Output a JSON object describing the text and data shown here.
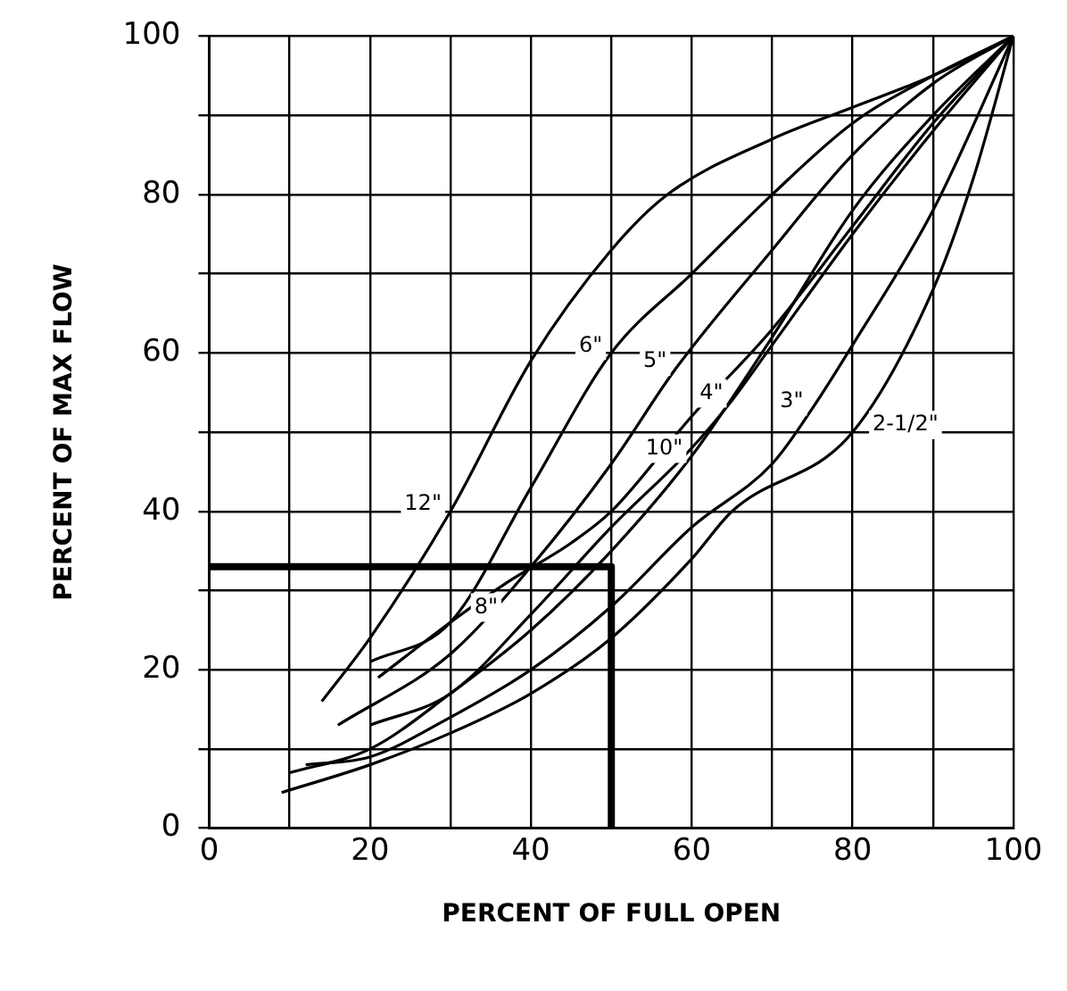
{
  "chart_data": {
    "type": "line",
    "xlabel": "PERCENT OF FULL OPEN",
    "ylabel": "PERCENT OF MAX FLOW",
    "xlim": [
      0,
      100
    ],
    "ylim": [
      0,
      100
    ],
    "xticks": [
      0,
      {
        "value": 10,
        "label": null
      },
      20,
      {
        "value": 30,
        "label": null
      },
      40,
      {
        "value": 50,
        "label": null
      },
      60,
      {
        "value": 70,
        "label": null
      },
      80,
      {
        "value": 90,
        "label": null
      },
      100
    ],
    "yticks": [
      0,
      {
        "value": 10,
        "label": null
      },
      20,
      {
        "value": 30,
        "label": null
      },
      40,
      {
        "value": 50,
        "label": null
      },
      60,
      {
        "value": 70,
        "label": null
      },
      80,
      {
        "value": 90,
        "label": null
      },
      100
    ],
    "grid": true,
    "legend": false,
    "marker": "none",
    "line_style": "solid",
    "series": [
      {
        "name": "12\"",
        "color": "#000000",
        "x": [
          14,
          20,
          30,
          40,
          50,
          57,
          70,
          80,
          90,
          100
        ],
        "values": [
          16,
          24,
          40,
          59,
          73,
          80,
          87,
          91,
          95,
          100
        ]
      },
      {
        "name": "6\"",
        "color": "#000000",
        "x": [
          20,
          30,
          40,
          50,
          60,
          70,
          80,
          90,
          100
        ],
        "values": [
          21,
          26,
          43,
          60,
          70,
          80,
          89,
          95,
          100
        ]
      },
      {
        "name": "5\"",
        "color": "#000000",
        "x": [
          16,
          30,
          40,
          50,
          58,
          70,
          80,
          90,
          100
        ],
        "values": [
          13,
          22,
          33,
          46,
          58,
          73,
          85,
          94,
          100
        ]
      },
      {
        "name": "4\"",
        "color": "#000000",
        "x": [
          20,
          30,
          40,
          50,
          60,
          65,
          70,
          80,
          90,
          100
        ],
        "values": [
          13,
          17,
          27,
          38,
          48,
          54,
          61,
          75,
          88,
          100
        ]
      },
      {
        "name": "10\"",
        "color": "#000000",
        "x": [
          10,
          20,
          30,
          40,
          50,
          60,
          70,
          80,
          90,
          100
        ],
        "values": [
          7,
          10,
          17,
          25,
          35,
          47,
          62,
          78,
          90,
          100
        ]
      },
      {
        "name": "3\"",
        "color": "#000000",
        "x": [
          12,
          20,
          30,
          40,
          50,
          60,
          70,
          75,
          80,
          90,
          100
        ],
        "values": [
          8,
          9,
          14,
          20,
          28,
          38,
          46,
          53,
          61,
          78,
          100
        ]
      },
      {
        "name": "8\"",
        "color": "#000000",
        "x": [
          21,
          30,
          37,
          45,
          50,
          60,
          70,
          80,
          90,
          100
        ],
        "values": [
          19,
          26,
          31,
          36,
          40,
          52,
          63,
          76,
          89,
          100
        ]
      },
      {
        "name": "2-1/2\"",
        "color": "#000000",
        "x": [
          9,
          20,
          30,
          40,
          50,
          60,
          65,
          80,
          90,
          95,
          100
        ],
        "values": [
          4.5,
          8,
          12,
          17,
          24,
          34,
          40,
          50,
          68,
          82,
          100
        ]
      },
      {
        "color": "#000000",
        "x": [
          0,
          50,
          50
        ],
        "values": [
          33,
          33,
          0
        ]
      }
    ]
  }
}
